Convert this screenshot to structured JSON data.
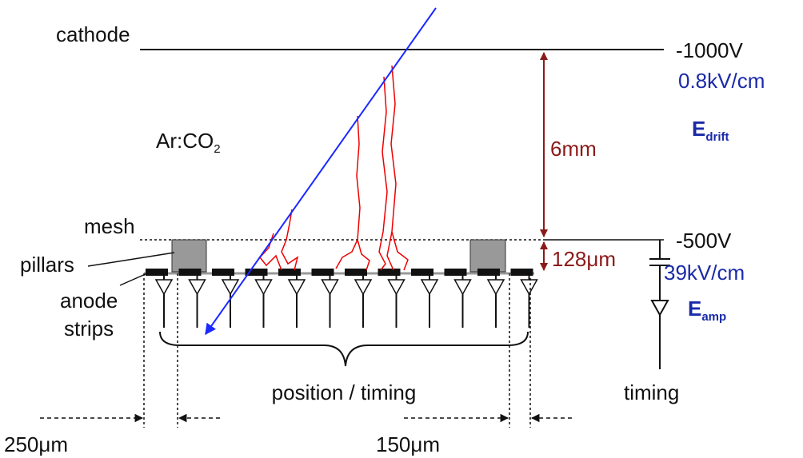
{
  "electrodes": {
    "cathode": "cathode",
    "mesh": "mesh",
    "pillars": "pillars",
    "anode_strips": [
      "anode",
      "strips"
    ]
  },
  "gas": {
    "name": "Ar:CO",
    "subscript": "2"
  },
  "voltages": {
    "cathode": "-1000V",
    "mesh": "-500V"
  },
  "fields": {
    "drift": {
      "value": "0.8kV/cm",
      "symbol": "E",
      "subscript": "drift"
    },
    "amp": {
      "value": "39kV/cm",
      "symbol": "E",
      "subscript": "amp"
    }
  },
  "gaps": {
    "drift": "6mm",
    "amp": "128μm"
  },
  "readout": {
    "strips": "position / timing",
    "mesh": "timing"
  },
  "dimensions": [
    "250μm",
    "150μm"
  ]
}
